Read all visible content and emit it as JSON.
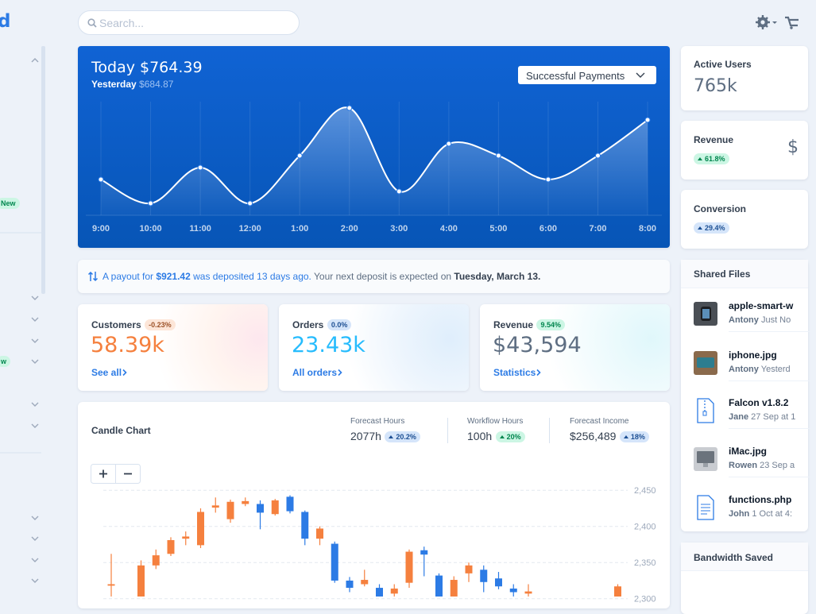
{
  "sidebar": {
    "logo": "d",
    "badges": [
      "New",
      "w"
    ]
  },
  "search": {
    "placeholder": "Search..."
  },
  "chart_data": [
    {
      "type": "line",
      "title": "Today $764.39",
      "subtitle_label": "Yesterday",
      "subtitle_value": "$684.87",
      "dropdown": "Successful Payments",
      "categories": [
        "9:00",
        "10:00",
        "11:00",
        "12:00",
        "1:00",
        "2:00",
        "3:00",
        "4:00",
        "5:00",
        "6:00",
        "7:00",
        "8:00"
      ],
      "values": [
        2,
        0,
        3,
        0,
        4,
        8,
        1,
        5,
        4,
        2,
        4,
        7
      ],
      "ylim": [
        -1,
        9
      ],
      "color": "#ffffff",
      "grid": true
    },
    {
      "type": "candlestick",
      "title": "Candle Chart",
      "stats": [
        {
          "label": "Forecast Hours",
          "value": "2077h",
          "change": "20.2%"
        },
        {
          "label": "Workflow Hours",
          "value": "100h",
          "change": "20%"
        },
        {
          "label": "Forecast Income",
          "value": "$256,489",
          "change": "18%"
        }
      ],
      "categories": [
        null,
        null,
        null,
        null,
        null,
        null,
        null,
        null,
        null,
        null,
        null,
        null,
        null,
        null,
        null,
        null,
        null,
        null,
        null,
        null,
        null,
        null,
        null,
        null,
        null,
        null,
        null,
        null,
        null,
        null,
        null,
        null,
        null,
        null,
        null
      ],
      "open": [
        2318,
        null,
        2303,
        2346,
        2362,
        2383,
        2374,
        2426,
        2410,
        2431,
        2431,
        2417,
        2441,
        2420,
        2383,
        2376,
        2325,
        2320,
        2315,
        2307,
        2322,
        2367,
        2332,
        2303,
        2335,
        2340,
        2328,
        2314,
        2307,
        null,
        null,
        null,
        null,
        null,
        2303
      ],
      "close": [
        2320,
        null,
        2346,
        2360,
        2381,
        2386,
        2420,
        2429,
        2434,
        2435,
        2419,
        2436,
        2421,
        2383,
        2397,
        2325,
        2315,
        2326,
        2303,
        2314,
        2365,
        2361,
        2303,
        2326,
        2346,
        2323,
        2317,
        2309,
        2310,
        null,
        null,
        null,
        null,
        null,
        2317
      ],
      "low": [
        2303,
        null,
        2303,
        2341,
        2359,
        2374,
        2370,
        2419,
        2405,
        2428,
        2396,
        2415,
        2418,
        2374,
        2374,
        2322,
        2309,
        2317,
        2303,
        2303,
        2315,
        2331,
        2303,
        2303,
        2323,
        2309,
        2313,
        2303,
        2303,
        null,
        null,
        null,
        null,
        null,
        2303
      ],
      "high": [
        2362,
        null,
        2353,
        2368,
        2385,
        2393,
        2425,
        2440,
        2437,
        2440,
        2436,
        2438,
        2443,
        2422,
        2400,
        2379,
        2330,
        2340,
        2320,
        2320,
        2368,
        2372,
        2335,
        2331,
        2350,
        2346,
        2337,
        2320,
        2320,
        null,
        null,
        null,
        null,
        null,
        2320
      ],
      "up_color": "#f5803e",
      "down_color": "#2c7be5",
      "ylim": [
        2300,
        2470
      ],
      "yticks": [
        {
          "value": 2450,
          "label": "2,450"
        },
        {
          "value": 2400,
          "label": "2,400"
        },
        {
          "value": 2350,
          "label": "2,350"
        },
        {
          "value": 2300,
          "label": "2,300"
        }
      ],
      "grid": true
    }
  ],
  "payout": {
    "text1": "A payout for",
    "amount": "$921.42",
    "text2": "was deposited 13 days ago.",
    "text3": "Your next deposit is expected on",
    "date": "Tuesday, March 13."
  },
  "stat_cards": [
    {
      "label": "Customers",
      "badge": "-0.23%",
      "value": "58.39k",
      "link": "See all"
    },
    {
      "label": "Orders",
      "badge": "0.0%",
      "value": "23.43k",
      "link": "All orders"
    },
    {
      "label": "Revenue",
      "badge": "9.54%",
      "value": "$43,594",
      "link": "Statistics"
    }
  ],
  "kpis": [
    {
      "label": "Active Users",
      "value": "765k"
    },
    {
      "label": "Revenue",
      "badge": "61.8%",
      "value": "$"
    },
    {
      "label": "Conversion",
      "badge": "29.4%"
    }
  ],
  "shared_files": {
    "title": "Shared Files",
    "files": [
      {
        "name": "apple-smart-w",
        "user": "Antony",
        "time": "Just No"
      },
      {
        "name": "iphone.jpg",
        "user": "Antony",
        "time": "Yesterd"
      },
      {
        "name": "Falcon v1.8.2",
        "user": "Jane",
        "time": "27 Sep at 1"
      },
      {
        "name": "iMac.jpg",
        "user": "Rowen",
        "time": "23 Sep a"
      },
      {
        "name": "functions.php",
        "user": "John",
        "time": "1 Oct at 4:"
      }
    ]
  },
  "bandwidth": {
    "title": "Bandwidth Saved"
  }
}
